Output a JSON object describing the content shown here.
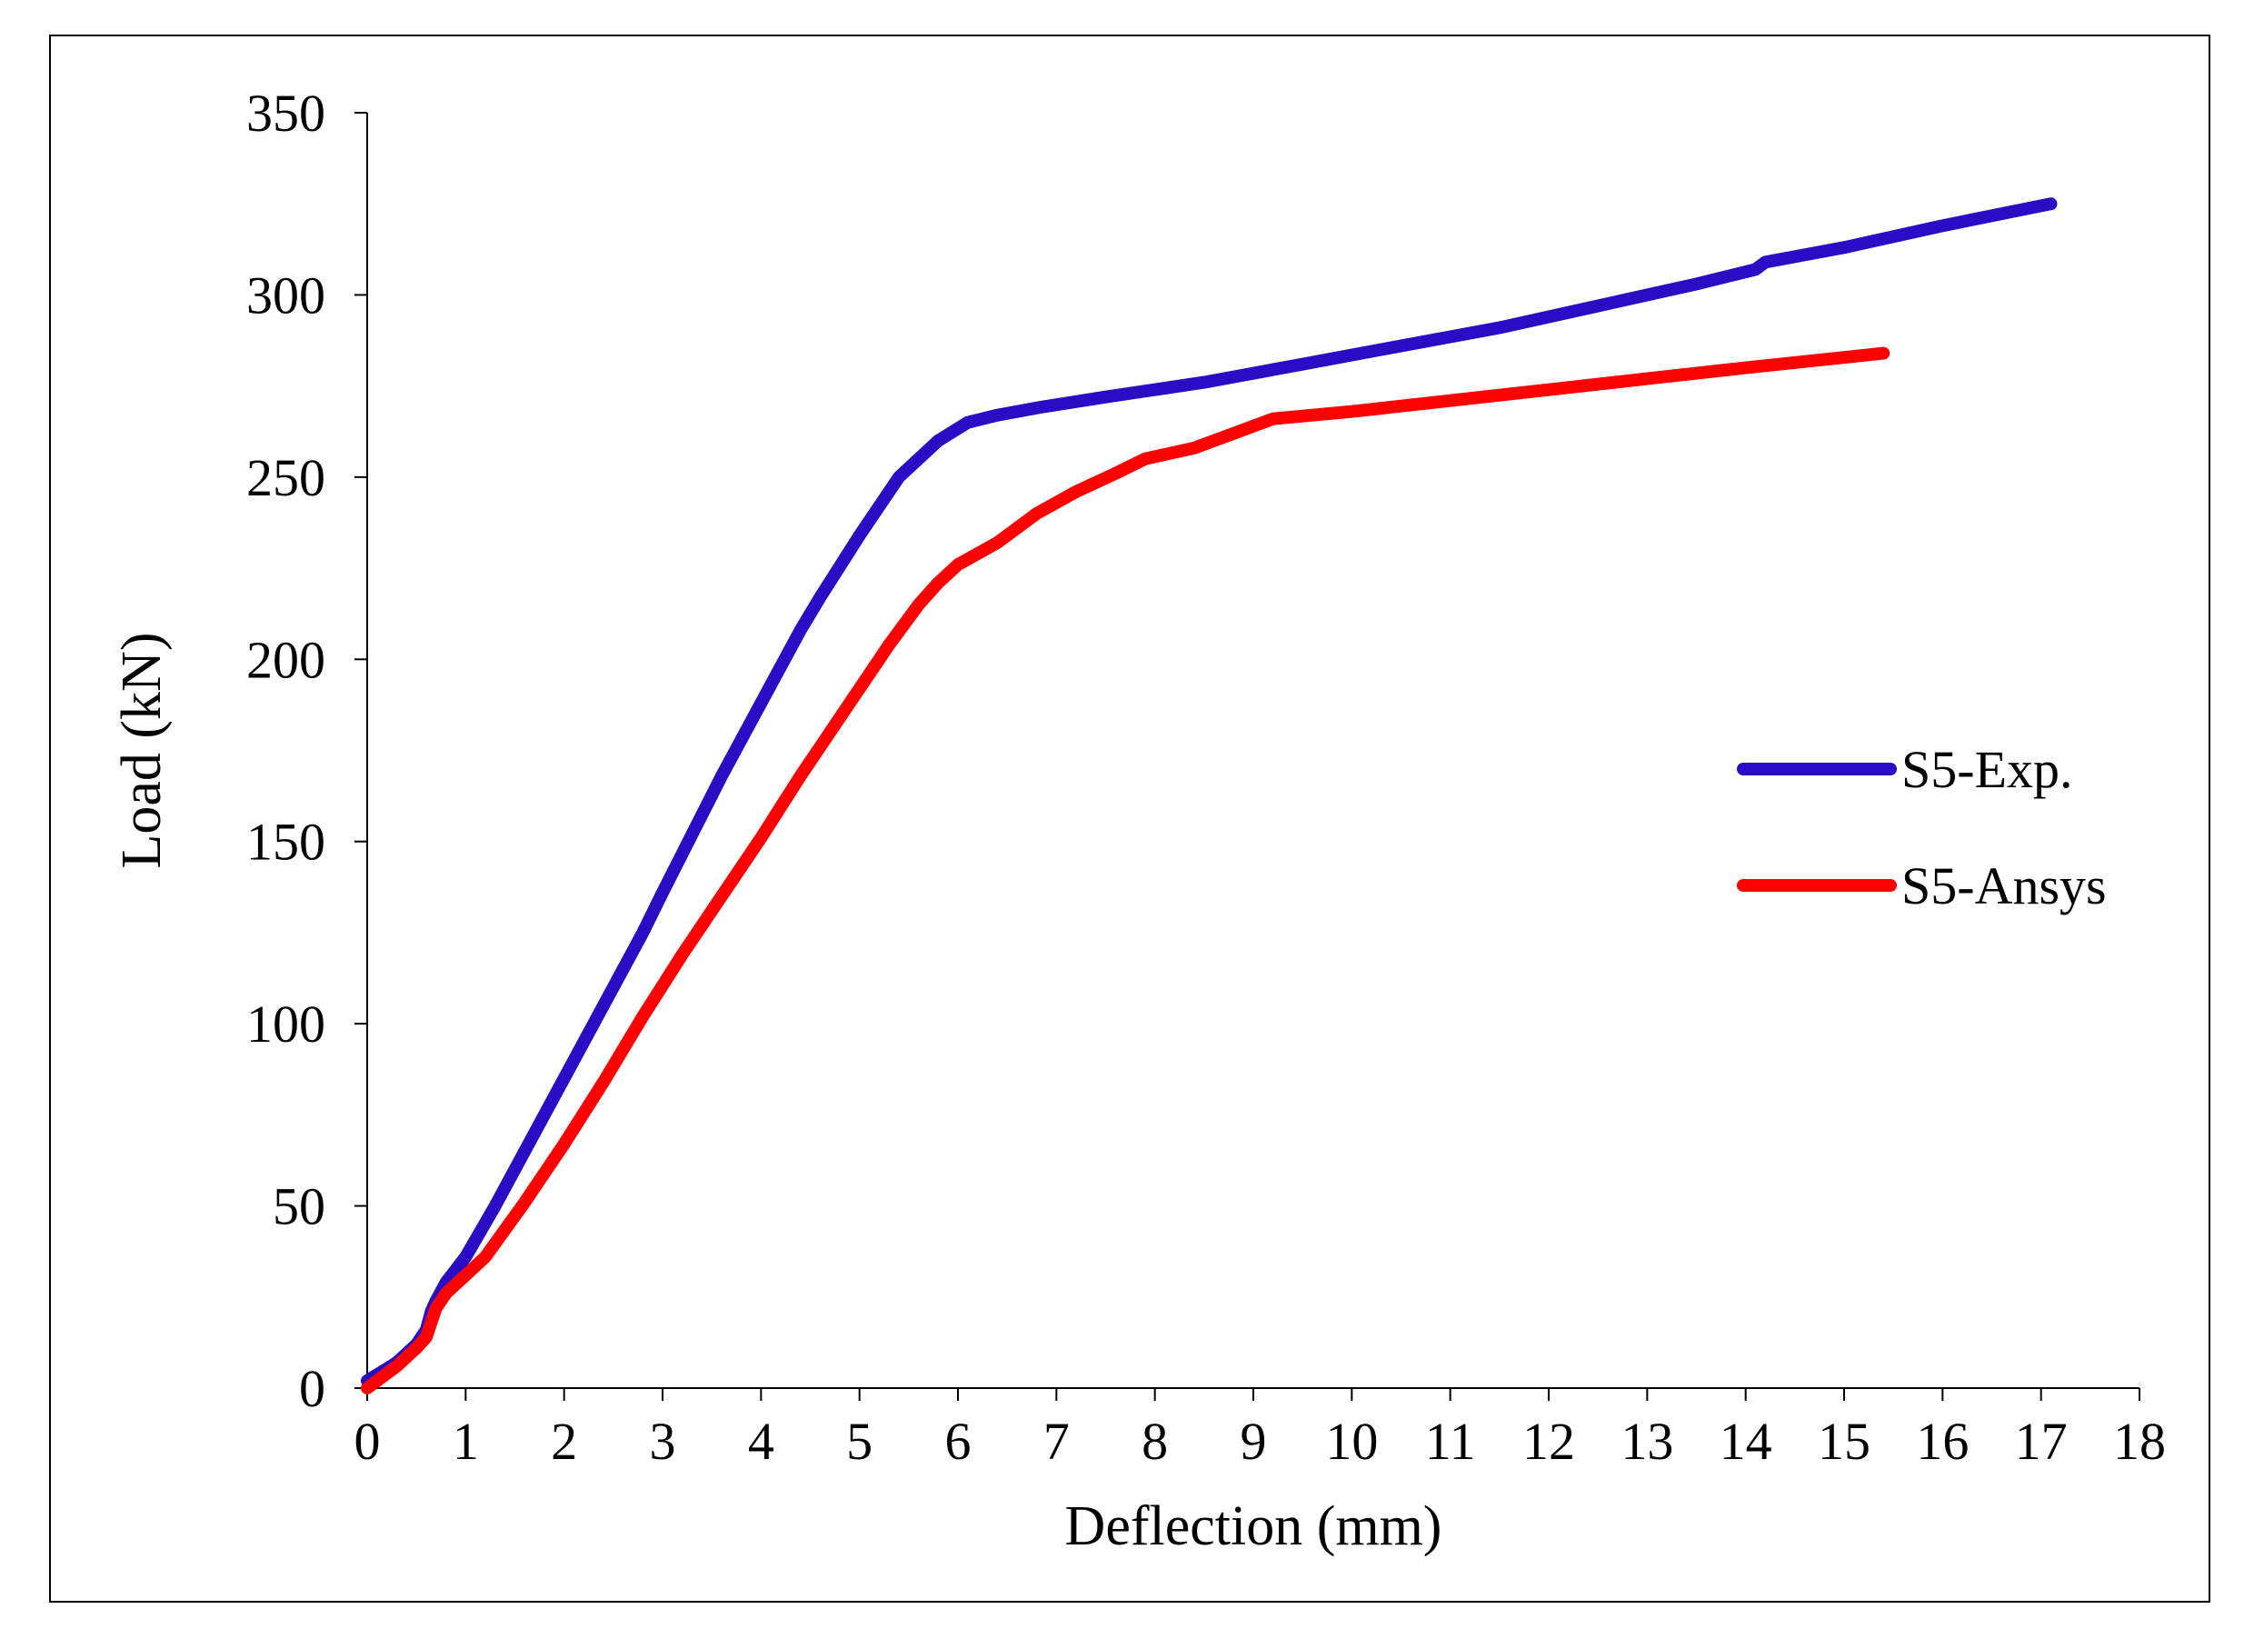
{
  "chart_data": {
    "type": "line",
    "title": "",
    "xlabel": "Deflection (mm)",
    "ylabel": "Load (kN)",
    "xlim": [
      0,
      18
    ],
    "ylim": [
      0,
      350
    ],
    "xticks": [
      0,
      1,
      2,
      3,
      4,
      5,
      6,
      7,
      8,
      9,
      10,
      11,
      12,
      13,
      14,
      15,
      16,
      17,
      18
    ],
    "yticks": [
      0,
      50,
      100,
      150,
      200,
      250,
      300,
      350
    ],
    "grid": false,
    "legend_position": "right-middle",
    "series": [
      {
        "name": "S5-Exp.",
        "color": "#2A0CC4",
        "x": [
          0,
          0.3,
          0.5,
          0.6,
          0.65,
          0.7,
          0.8,
          1.0,
          1.3,
          1.6,
          1.9,
          2.2,
          2.5,
          2.8,
          3.0,
          3.3,
          3.6,
          3.9,
          4.2,
          4.4,
          4.6,
          5.0,
          5.4,
          5.8,
          6.1,
          6.4,
          6.8,
          7.5,
          8.5,
          9.5,
          10.5,
          11.5,
          12.5,
          13.5,
          14.1,
          14.2,
          15.0,
          16.0,
          17.1
        ],
        "y": [
          2,
          7,
          12,
          16,
          21,
          24,
          29,
          36,
          50,
          65,
          80,
          95,
          110,
          125,
          136,
          152,
          168,
          183,
          198,
          208,
          217,
          234,
          250,
          260,
          265,
          267,
          269,
          272,
          276,
          281,
          286,
          291,
          297,
          303,
          307,
          309,
          313,
          319,
          325
        ]
      },
      {
        "name": "S5-Ansys",
        "color": "#FF0000",
        "x": [
          0,
          0.3,
          0.5,
          0.6,
          0.65,
          0.7,
          0.8,
          1.2,
          1.6,
          2.0,
          2.4,
          2.8,
          3.2,
          3.6,
          4.0,
          4.4,
          4.7,
          5.0,
          5.3,
          5.6,
          5.8,
          6.0,
          6.4,
          6.8,
          7.2,
          7.6,
          7.9,
          8.4,
          8.8,
          9.2,
          10.0,
          11.0,
          12.0,
          13.0,
          14.0,
          15.4
        ],
        "y": [
          0,
          6,
          11,
          14,
          18,
          22,
          26,
          36,
          51,
          67,
          84,
          102,
          119,
          135,
          151,
          168,
          180,
          192,
          204,
          215,
          221,
          226,
          232,
          240,
          246,
          251,
          255,
          258,
          262,
          266,
          268,
          271,
          274,
          277,
          280,
          284
        ]
      }
    ]
  }
}
